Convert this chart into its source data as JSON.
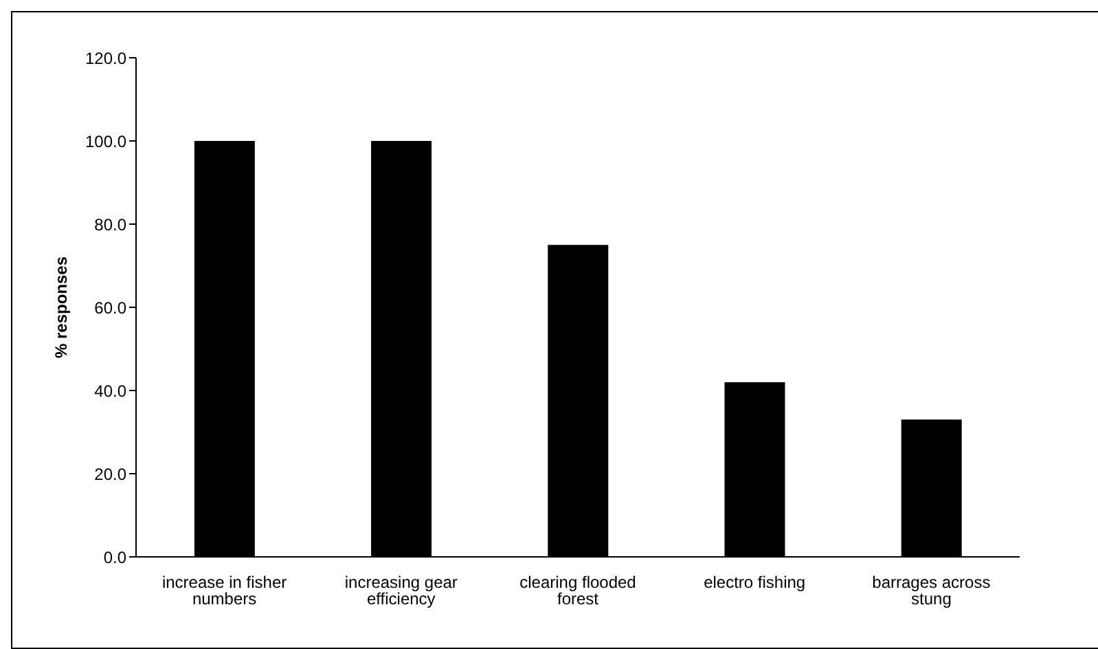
{
  "chart_data": {
    "type": "bar",
    "ylabel": "% responses",
    "categories": [
      "increase in fisher numbers",
      "increasing gear efficiency",
      "clearing flooded forest",
      "electro fishing",
      "barrages across stung"
    ],
    "values": [
      100,
      100,
      75,
      42,
      33
    ],
    "color": "#000000",
    "ylim": [
      0,
      120
    ],
    "yticks": [
      {
        "value": 0,
        "label": "0.0"
      },
      {
        "value": 20,
        "label": "20.0"
      },
      {
        "value": 40,
        "label": "40.0"
      },
      {
        "value": 60,
        "label": "60.0"
      },
      {
        "value": 80,
        "label": "80.0"
      },
      {
        "value": 100,
        "label": "100.0"
      },
      {
        "value": 120,
        "label": "120.0"
      }
    ],
    "grid": false,
    "legend": false
  }
}
